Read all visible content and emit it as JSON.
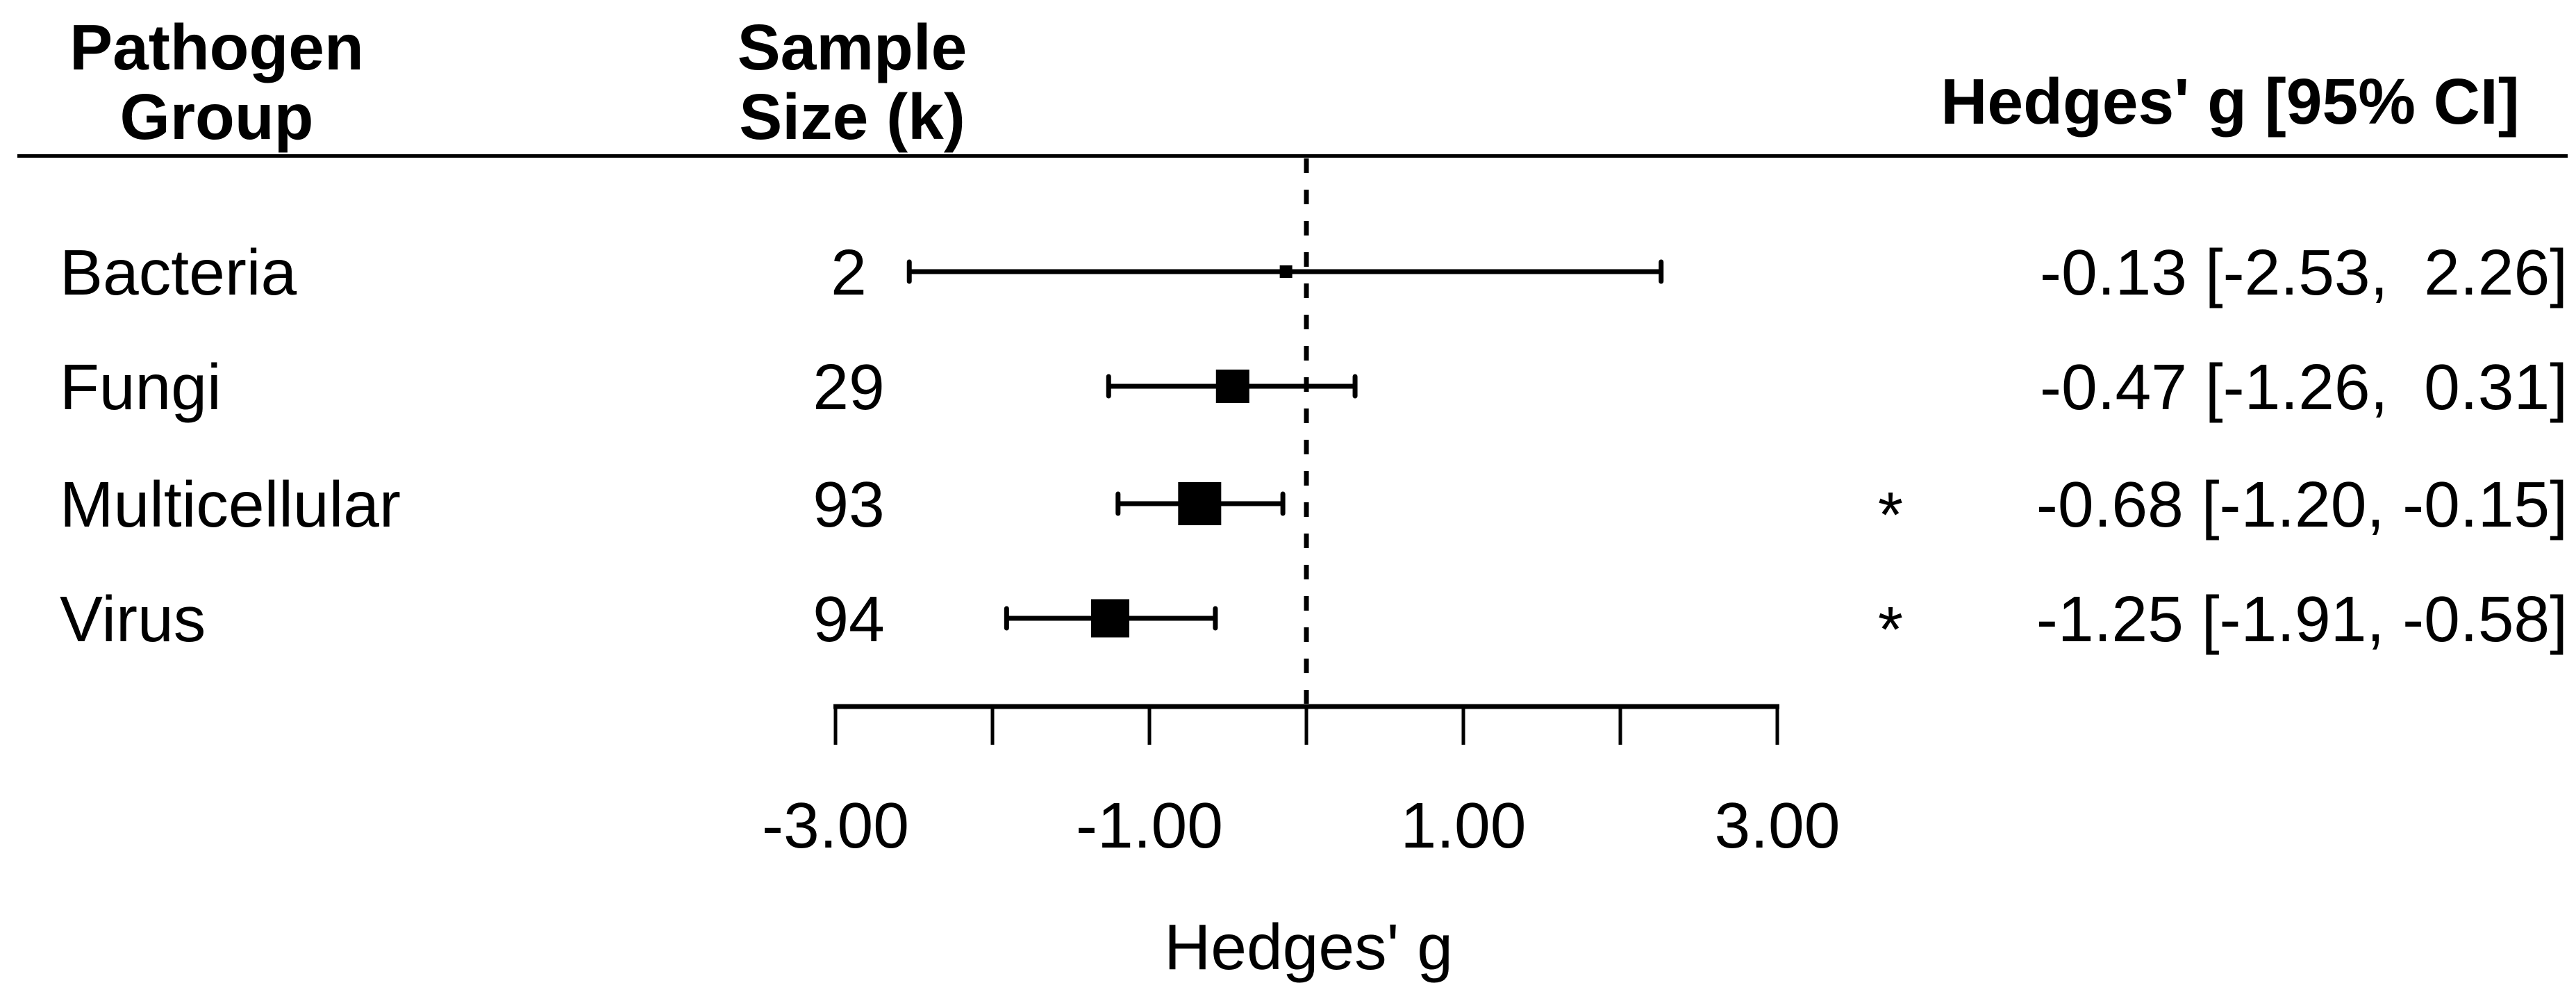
{
  "figure": {
    "background": "#ffffff",
    "ink": "#000000"
  },
  "header": {
    "col1": [
      "Pathogen",
      "Group"
    ],
    "col2": [
      "Sample",
      "Size (k)"
    ],
    "col3": "Hedges' g [95% CI]"
  },
  "chart_data": {
    "type": "forest",
    "xlabel": "Hedges' g",
    "xlim": [
      -3,
      3
    ],
    "x_ticks": [
      -3,
      -2,
      -1,
      0,
      1,
      2,
      3
    ],
    "x_tick_labels": {
      "-3": "-3.00",
      "-1": "-1.00",
      "1": "1.00",
      "3": "3.00"
    },
    "reference_line": 0,
    "significance_symbol": "*",
    "rows": [
      {
        "group": "Bacteria",
        "k": "2",
        "g": -0.13,
        "ci_low": -2.53,
        "ci_high": 2.26,
        "estimate_label": "-0.13 [-2.53,  2.26]",
        "significant": false,
        "marker_size": 18
      },
      {
        "group": "Fungi",
        "k": "29",
        "g": -0.47,
        "ci_low": -1.26,
        "ci_high": 0.31,
        "estimate_label": "-0.47 [-1.26,  0.31]",
        "significant": false,
        "marker_size": 48
      },
      {
        "group": "Multicellular",
        "k": "93",
        "g": -0.68,
        "ci_low": -1.2,
        "ci_high": -0.15,
        "estimate_label": "-0.68 [-1.20, -0.15]",
        "significant": true,
        "marker_size": 62
      },
      {
        "group": "Virus",
        "k": "94",
        "g": -1.25,
        "ci_low": -1.91,
        "ci_high": -0.58,
        "estimate_label": "-1.25 [-1.91, -0.58]",
        "significant": true,
        "marker_size": 55
      }
    ]
  }
}
